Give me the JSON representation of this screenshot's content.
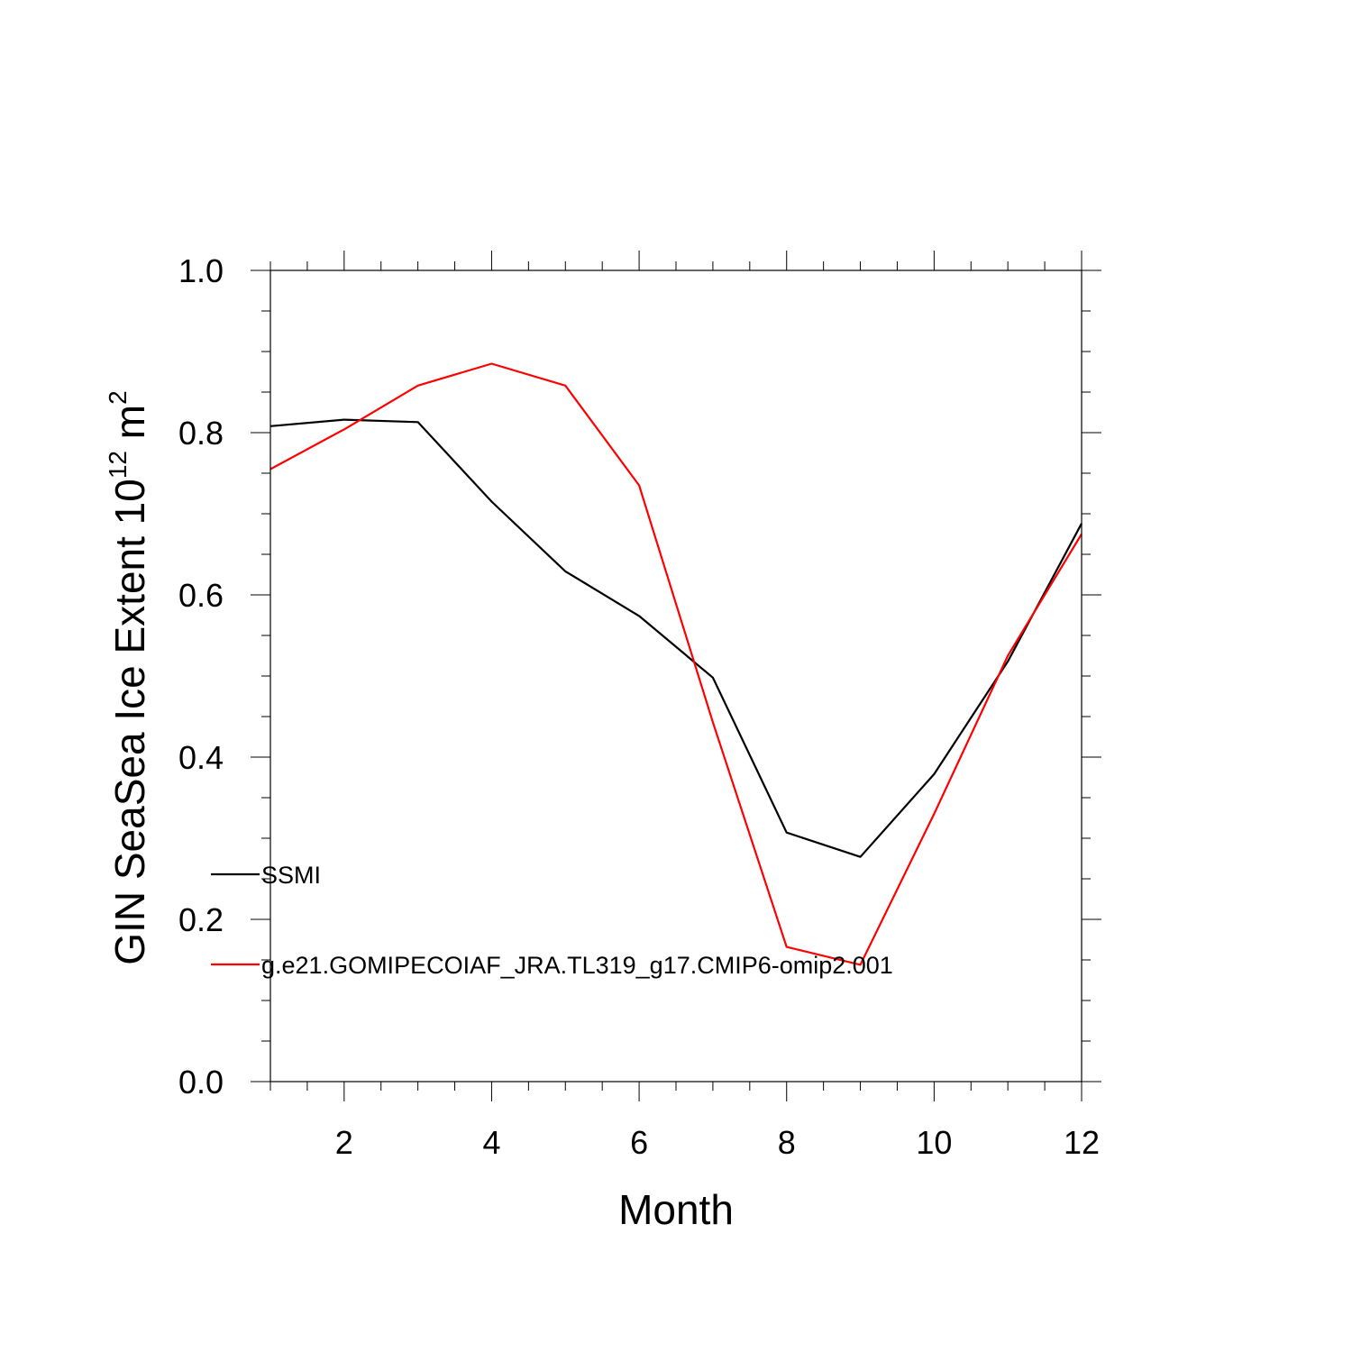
{
  "chart_data": {
    "type": "line",
    "title": "",
    "xlabel": "Month",
    "ylabel": {
      "prefix": "GIN SeaSea Ice Extent 10",
      "exp1": "12",
      "middle": " m",
      "exp2": "2"
    },
    "xlim": [
      1,
      12
    ],
    "ylim": [
      0.0,
      1.0
    ],
    "x_ticks": [
      2,
      4,
      6,
      8,
      10,
      12
    ],
    "y_ticks": [
      0.0,
      0.2,
      0.4,
      0.6,
      0.8,
      1.0
    ],
    "y_tick_labels": [
      "0.0",
      "0.2",
      "0.4",
      "0.6",
      "0.8",
      "1.0"
    ],
    "x_tick_labels": [
      "2",
      "4",
      "6",
      "8",
      "10",
      "12"
    ],
    "x_minor_step": 0.5,
    "y_minor_step": 0.05,
    "grid": false,
    "legend_position": "lower-left inside",
    "x": [
      1,
      2,
      3,
      4,
      5,
      6,
      7,
      8,
      9,
      10,
      11,
      12
    ],
    "series": [
      {
        "name": "SSMI",
        "color": "#000000",
        "values": [
          0.808,
          0.816,
          0.813,
          0.715,
          0.629,
          0.574,
          0.498,
          0.307,
          0.277,
          0.379,
          0.518,
          0.688
        ]
      },
      {
        "name": "g.e21.GOMIPECOIAF_JRA.TL319_g17.CMIP6-omip2.001",
        "color": "#ff0000",
        "values": [
          0.755,
          0.804,
          0.858,
          0.885,
          0.858,
          0.735,
          0.443,
          0.166,
          0.144,
          0.33,
          0.525,
          0.675
        ]
      }
    ]
  }
}
